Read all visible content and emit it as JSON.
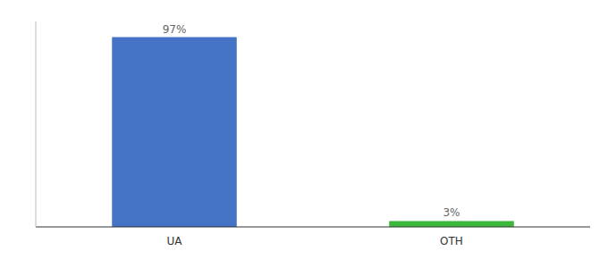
{
  "chart_data": {
    "type": "bar",
    "categories": [
      "UA",
      "OTH"
    ],
    "values": [
      97,
      3
    ],
    "value_labels": [
      "97%",
      "3%"
    ],
    "colors": [
      "#4472c4",
      "#3cb93c"
    ],
    "ylim": [
      0,
      105
    ],
    "yticks": [],
    "tick_labels": "x",
    "data_labels": true,
    "grid": false
  }
}
